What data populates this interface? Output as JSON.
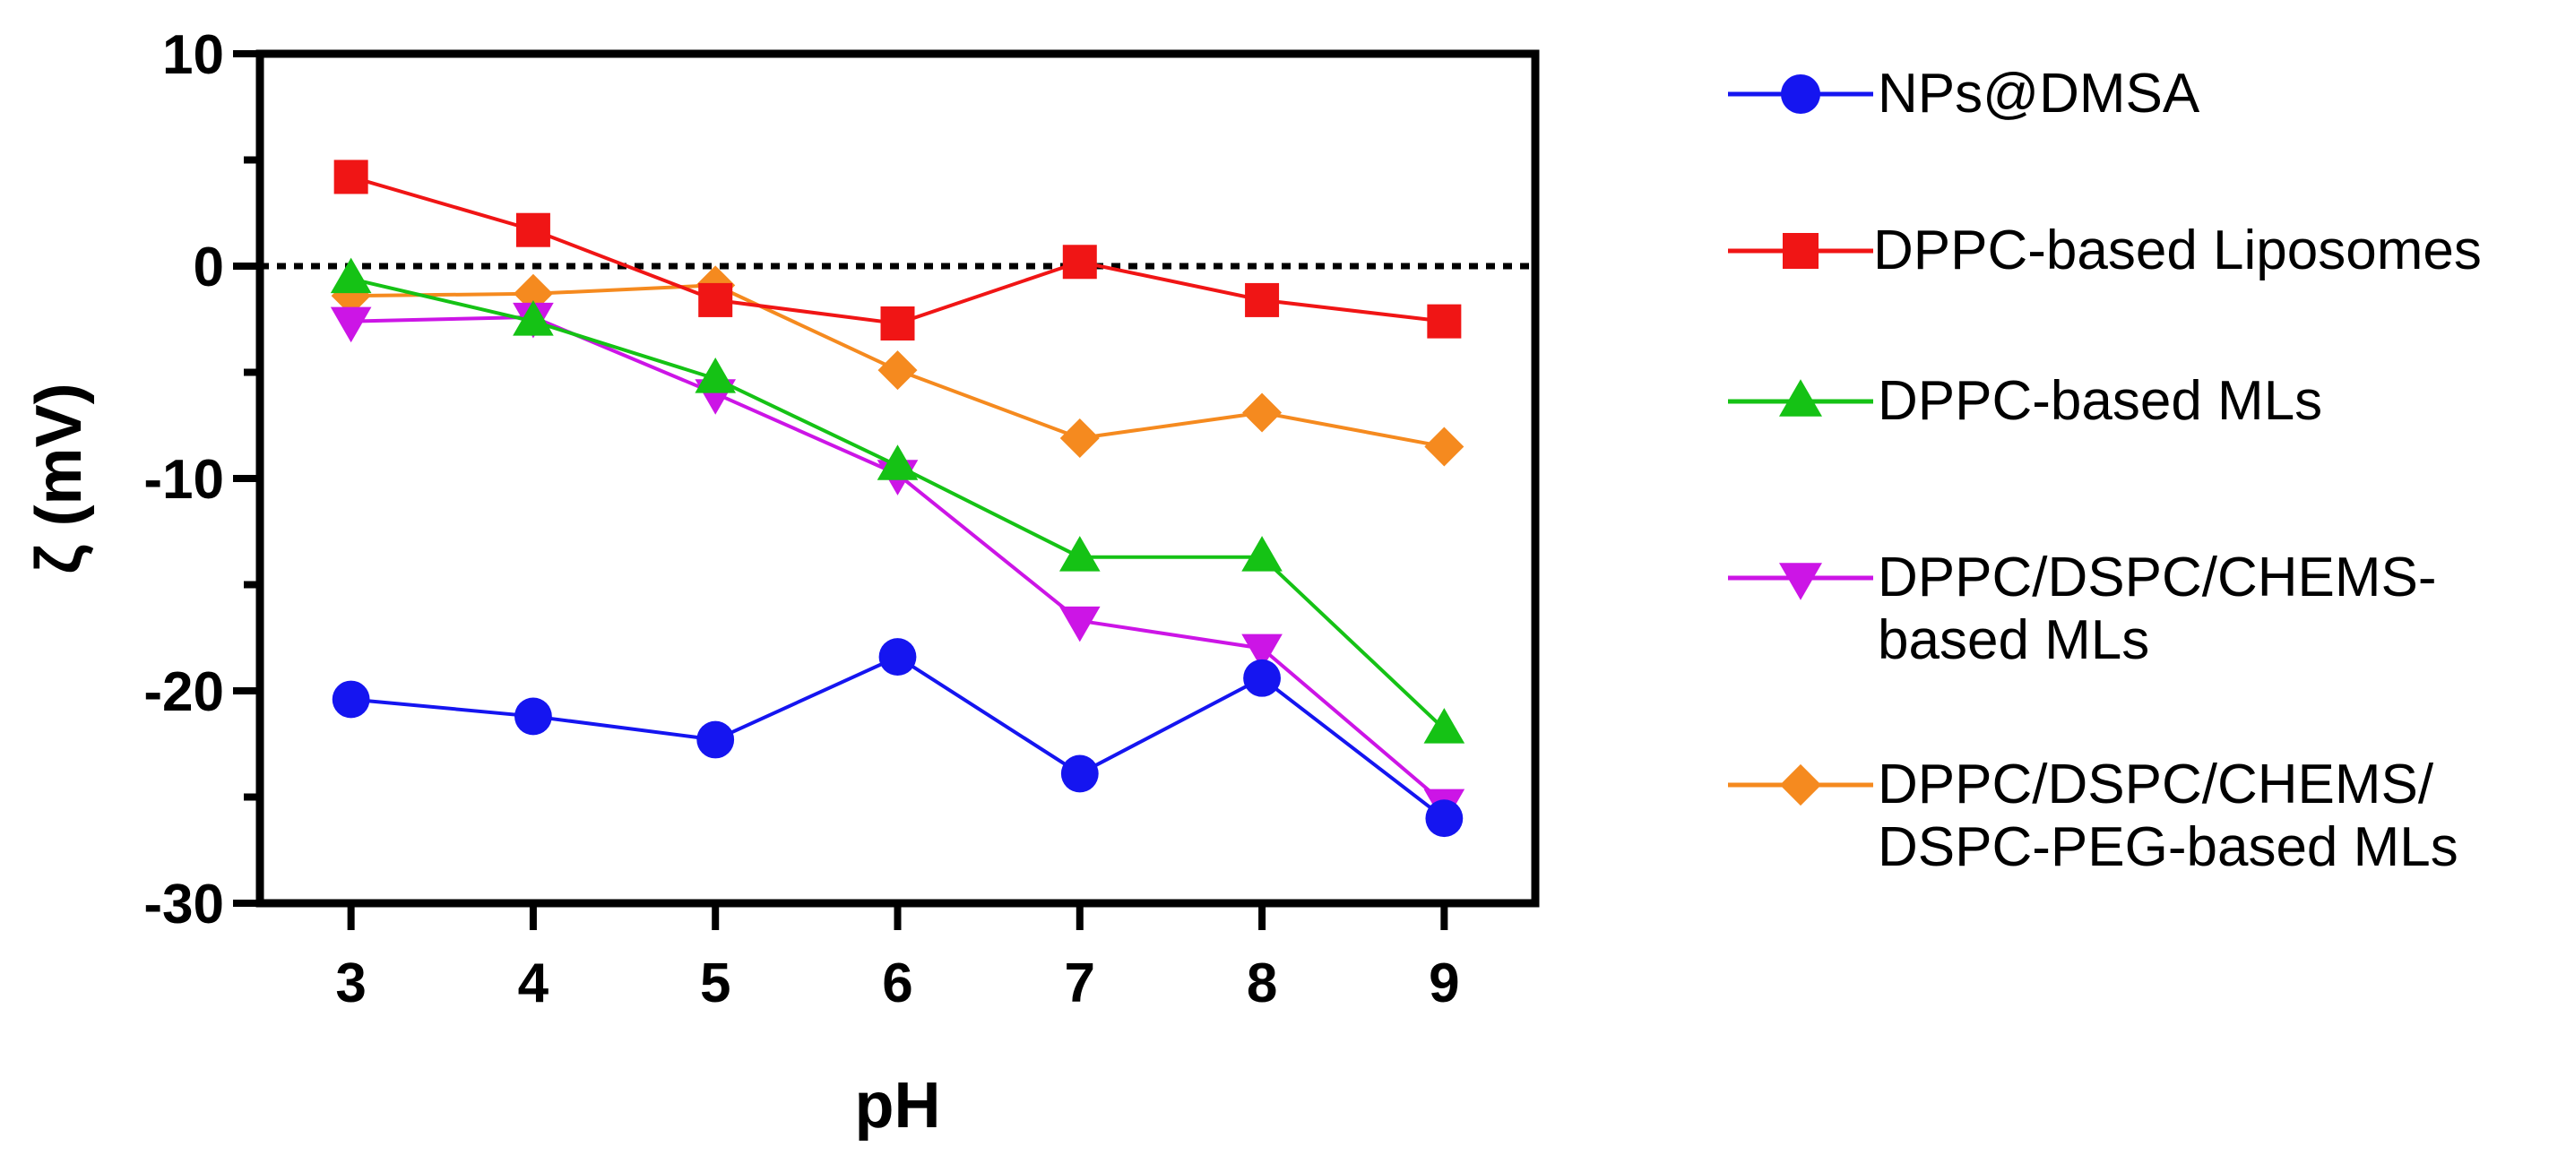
{
  "chart_data": {
    "type": "line",
    "title": "",
    "xlabel": "pH",
    "ylabel": "ζ (mV)",
    "x": [
      3,
      4,
      5,
      6,
      7,
      8,
      9
    ],
    "x_tick_labels": [
      "3",
      "4",
      "5",
      "6",
      "7",
      "8",
      "9"
    ],
    "xlim": [
      2.5,
      9.5
    ],
    "ylim": [
      -30,
      10
    ],
    "y_ticks": [
      10,
      0,
      -10,
      -20,
      -30
    ],
    "y_tick_labels": [
      "10",
      "0",
      "-10",
      "-20",
      "-30"
    ],
    "reference_line": {
      "y": 0,
      "style": "dotted"
    },
    "grid": false,
    "legend_position": "right",
    "series": [
      {
        "name": "NPs@DMSA",
        "legend_lines": [
          "NPs@DMSA"
        ],
        "color": "#1515f0",
        "marker": "circle",
        "values": [
          -20.4,
          -21.2,
          -22.3,
          -18.4,
          -23.9,
          -19.4,
          -26.0
        ]
      },
      {
        "name": "DPPC-based Liposomes",
        "legend_lines": [
          "DPPC-based Liposomes"
        ],
        "color": "#f01515",
        "marker": "square",
        "values": [
          4.2,
          1.7,
          -1.6,
          -2.7,
          0.2,
          -1.6,
          -2.6
        ]
      },
      {
        "name": "DPPC-based MLs",
        "legend_lines": [
          "DPPC-based MLs"
        ],
        "color": "#15c215",
        "marker": "triangle-up",
        "values": [
          -0.6,
          -2.6,
          -5.3,
          -9.4,
          -13.7,
          -13.7,
          -21.8
        ]
      },
      {
        "name": "DPPC/DSPC/CHEMS-based MLs",
        "legend_lines": [
          "DPPC/DSPC/CHEMS-",
          "based MLs"
        ],
        "color": "#cc15e6",
        "marker": "triangle-down",
        "values": [
          -2.6,
          -2.4,
          -6.0,
          -9.8,
          -16.7,
          -18.0,
          -25.3
        ]
      },
      {
        "name": "DPPC/DSPC/CHEMS/DSPC-PEG-based MLs",
        "legend_lines": [
          "DPPC/DSPC/CHEMS/",
          "DSPC-PEG-based MLs"
        ],
        "color": "#f58a1f",
        "marker": "diamond",
        "values": [
          -1.4,
          -1.3,
          -0.9,
          -4.9,
          -8.1,
          -6.9,
          -8.5
        ]
      }
    ]
  }
}
